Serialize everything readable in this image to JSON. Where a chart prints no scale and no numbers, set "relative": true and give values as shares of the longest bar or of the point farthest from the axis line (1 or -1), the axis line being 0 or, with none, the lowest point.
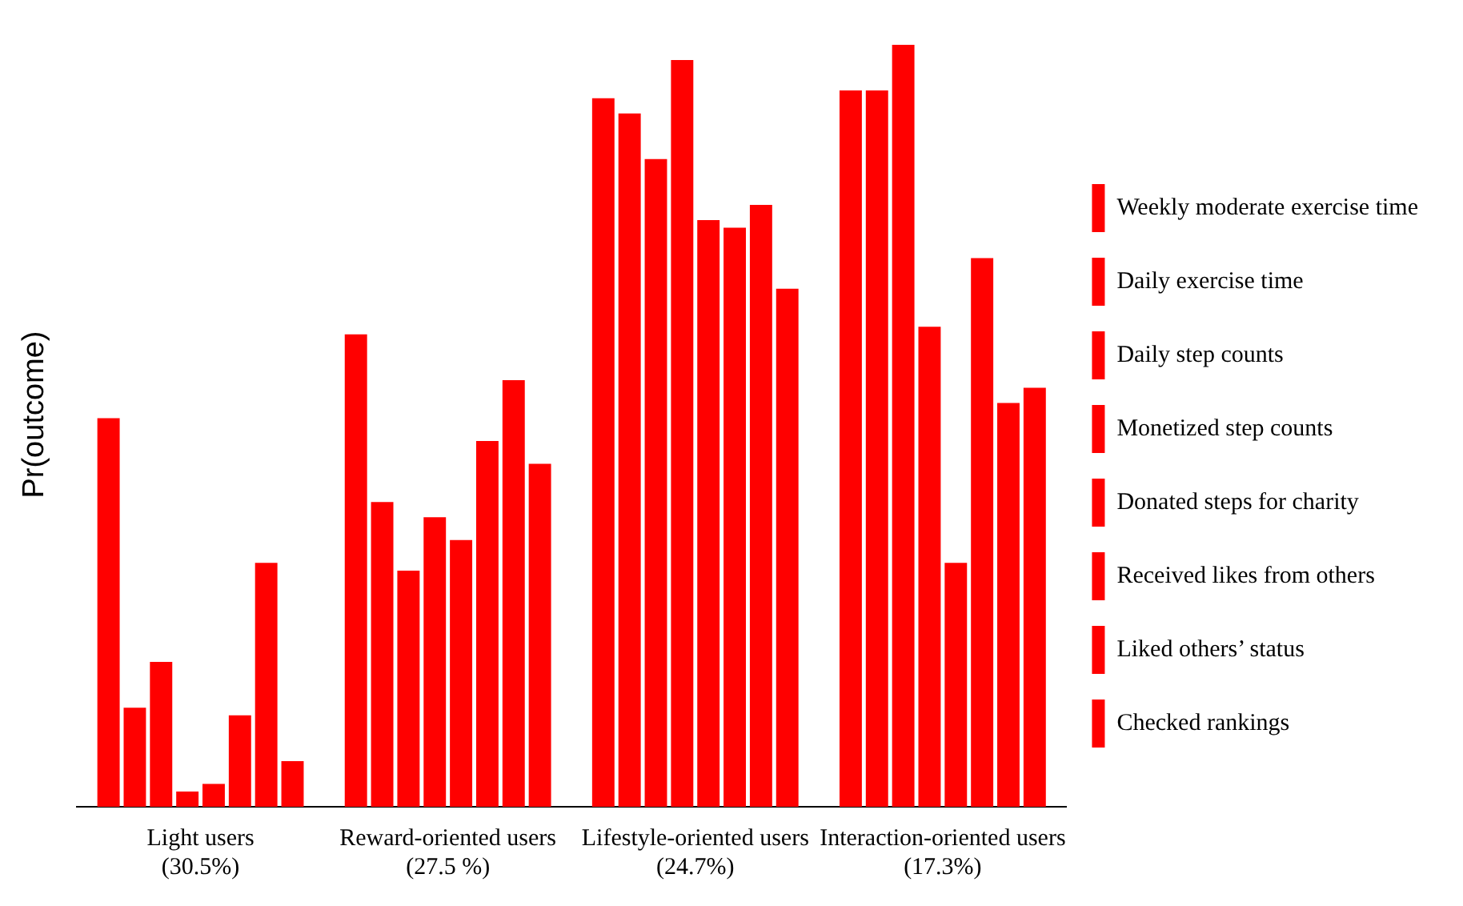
{
  "chart_data": {
    "type": "bar",
    "relative": true,
    "ylabel": "Pr(outcome)",
    "legend": "right",
    "categories": [
      "Light users (30.5%)",
      "Reward-oriented users (27.5 %)",
      "Lifestyle-oriented users (24.7%)",
      "Interaction-oriented users (17.3%)"
    ],
    "series": [
      {
        "name": "Checked rankings",
        "color": "#ff0000",
        "values": [
          0.51,
          0.62,
          0.93,
          0.94
        ]
      },
      {
        "name": "Liked others’ status",
        "color": "#ff0000",
        "values": [
          0.13,
          0.4,
          0.91,
          0.94
        ]
      },
      {
        "name": "Received likes from others",
        "color": "#ff0000",
        "values": [
          0.19,
          0.31,
          0.85,
          1
        ]
      },
      {
        "name": "Donated steps for charity",
        "color": "#ff0000",
        "values": [
          0.02,
          0.38,
          0.98,
          0.63
        ]
      },
      {
        "name": "Monetized step counts",
        "color": "#ff0000",
        "values": [
          0.03,
          0.35,
          0.77,
          0.32
        ]
      },
      {
        "name": "Daily step counts",
        "color": "#ff0000",
        "values": [
          0.12,
          0.48,
          0.76,
          0.72
        ]
      },
      {
        "name": "Daily exercise time",
        "color": "#ff0000",
        "values": [
          0.32,
          0.56,
          0.79,
          0.53
        ]
      },
      {
        "name": "Weekly moderate exercise time",
        "color": "#ff0000",
        "values": [
          0.06,
          0.45,
          0.68,
          0.55
        ]
      }
    ]
  }
}
